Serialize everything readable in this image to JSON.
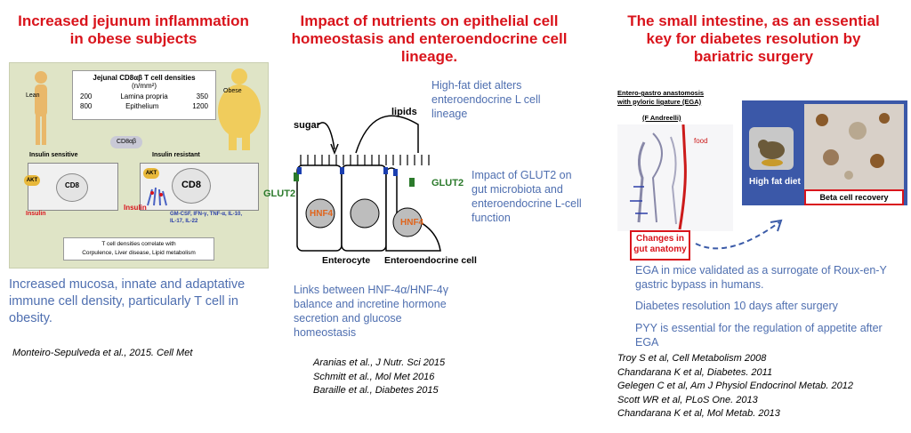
{
  "col1": {
    "title_line1": "Increased jejunum inflammation",
    "title_line2": "in obese subjects",
    "figure": {
      "lean": "Lean",
      "obese": "Obese",
      "table_title": "Jejunal CD8αβ T cell densities",
      "table_units": "(n/mm²)",
      "row1": {
        "left": "200",
        "mid": "Lamina propria",
        "right": "350"
      },
      "row2": {
        "left": "800",
        "mid": "Epithelium",
        "right": "1200"
      },
      "cd8ab": "CD8αβ",
      "insulin_sensitive": "Insulin sensitive",
      "insulin_resistant": "Insulin resistant",
      "akt_left": "AKT",
      "akt_right": "AKT",
      "cd8_left": "CD8",
      "cd8_right": "CD8",
      "insulin_left": "Insulin",
      "insulin_right": "Insulin",
      "cytokines_line1": "GM-CSF, IFN-γ, TNF-α, IL-10,",
      "cytokines_line2": "IL-17, IL-22",
      "bottom_line1": "T cell densities correlate with",
      "bottom_line2": "Corpulence, Liver disease, Lipid metabolism"
    },
    "text_line1": "Increased mucosa, innate and adaptative",
    "text_line2": "immune cell density, particularly T cell in",
    "text_line3": "obesity.",
    "reference": "Monteiro-Sepulveda et al., 2015. Cell Met"
  },
  "col2": {
    "title_line1": "Impact of nutrients on epithelial cell",
    "title_line2": "homeostasis and enteroendocrine cell",
    "title_line3": "lineage.",
    "diagram": {
      "sugar": "sugar",
      "lipids": "lipids",
      "glut2_left": "GLUT2",
      "glut2_right": "GLUT2",
      "hnf_left": "HNF4",
      "hnf_right": "HNF4",
      "enterocyte": "Enterocyte",
      "enteroendocrine": "Enteroendocrine cell"
    },
    "note1_line1": "High-fat diet alters",
    "note1_line2": "enteroendocrine L cell",
    "note1_line3": "lineage",
    "note2_line1": "Impact of GLUT2 on",
    "note2_line2": "gut microbiota and",
    "note2_line3": "enteroendocrine L-cell",
    "note2_line4": "function",
    "note3_line1": "Links between HNF-4α/HNF-4γ",
    "note3_line2": "balance and incretine hormone",
    "note3_line3": "secretion and glucose",
    "note3_line4": "homeostasis",
    "refs": [
      "Aranias et al., J Nutr. Sci 2015",
      "Schmitt  et al., Mol Met 2016",
      "Baraille et al., Diabetes 2015"
    ]
  },
  "col3": {
    "title_line1": "The small intestine, as an essential",
    "title_line2": "key for diabetes resolution by",
    "title_line3": "bariatric surgery",
    "ega_line1": "Entero-gastro anastomosis",
    "ega_line2": "with pyloric ligature (EGA)",
    "ega_author": "(F Andreelli)",
    "food": "food",
    "changes_line1": "Changes in",
    "changes_line2": "gut anatomy",
    "high_fat": "High fat diet",
    "beta_recovery": "Beta cell recovery",
    "text1_line1": "EGA in mice validated as a surrogate of Roux-en-Y",
    "text1_line2": "gastric bypass in humans.",
    "text2": "Diabetes resolution 10 days after surgery",
    "text3_line1": "PYY is essential for the regulation of appetite after",
    "text3_line2": "EGA",
    "refs": [
      "Troy S et al, Cell Metabolism 2008",
      "Chandarana K et al, Diabetes. 2011",
      "Gelegen C et al, Am J Physiol Endocrinol Metab. 2012",
      "Scott WR et al, PLoS One. 2013",
      "Chandarana K et al, Mol Metab. 2013"
    ]
  }
}
